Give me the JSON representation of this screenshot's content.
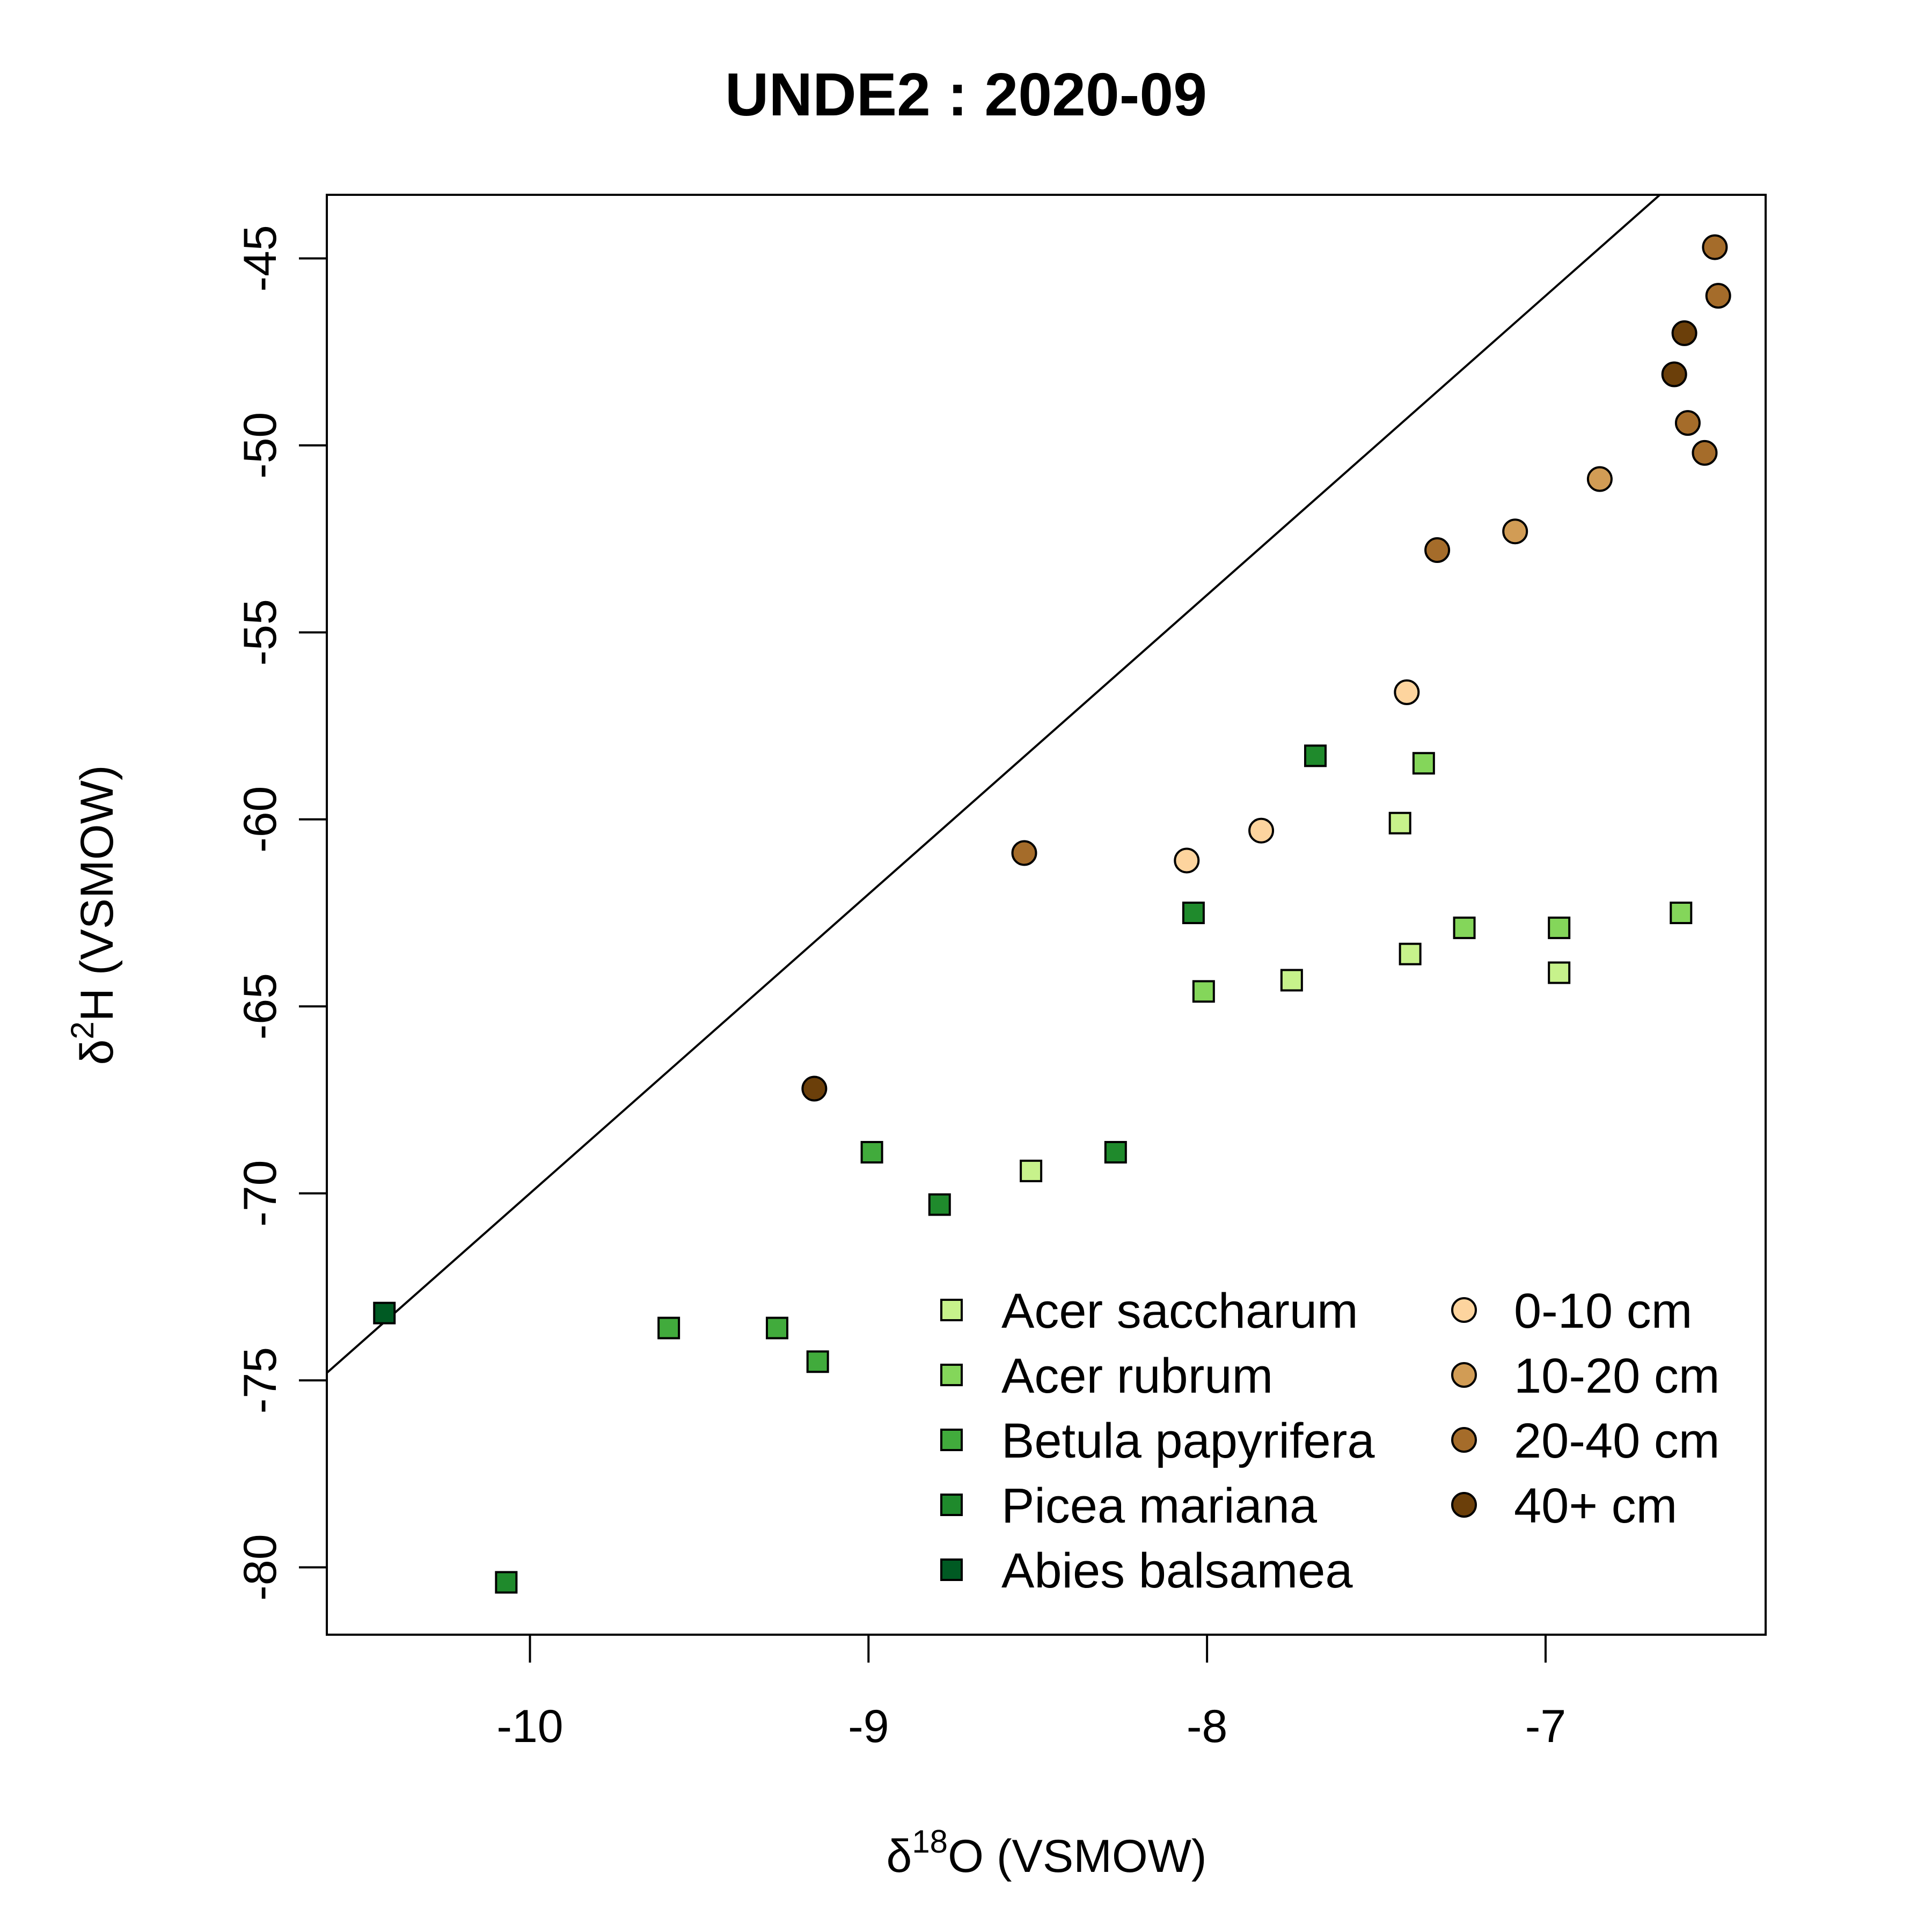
{
  "chart_data": {
    "type": "scatter",
    "title": "UNDE2 : 2020-09",
    "xlabel": {
      "symbol": "δ",
      "sup": "18",
      "main": "O (VSMOW)"
    },
    "ylabel": {
      "symbol": "δ",
      "sup": "2",
      "main": "H (VSMOW)"
    },
    "xlim": [
      -10.6,
      -6.35
    ],
    "ylim": [
      -81.8,
      -43.3
    ],
    "x_ticks": [
      -10,
      -9,
      -8,
      -7
    ],
    "x_tick_labels": [
      "-10",
      "-9",
      "-8",
      "-7"
    ],
    "y_ticks": [
      -80,
      -75,
      -70,
      -65,
      -60,
      -55,
      -50,
      -45
    ],
    "y_tick_labels": [
      "-80",
      "-75",
      "-70",
      "-65",
      "-60",
      "-55",
      "-50",
      "-45"
    ],
    "grid": false,
    "reference_line": {
      "slope": 8,
      "intercept": 10
    },
    "legend_position": "bottom-right",
    "series": [
      {
        "name": "Acer saccharum",
        "shape": "square",
        "color": "#c7f28b",
        "points": [
          [
            -8.52,
            -69.4
          ],
          [
            -7.75,
            -64.3
          ],
          [
            -7.43,
            -60.1
          ],
          [
            -7.4,
            -63.6
          ],
          [
            -6.96,
            -64.1
          ]
        ]
      },
      {
        "name": "Acer rubrum",
        "shape": "square",
        "color": "#84d65a",
        "points": [
          [
            -8.01,
            -64.6
          ],
          [
            -7.36,
            -58.5
          ],
          [
            -7.24,
            -62.9
          ],
          [
            -6.96,
            -62.9
          ],
          [
            -6.6,
            -62.5
          ]
        ]
      },
      {
        "name": "Betula papyrifera",
        "shape": "square",
        "color": "#41ab3c",
        "points": [
          [
            -9.59,
            -73.6
          ],
          [
            -9.27,
            -73.6
          ],
          [
            -9.15,
            -74.5
          ],
          [
            -8.99,
            -68.9
          ]
        ]
      },
      {
        "name": "Picea mariana",
        "shape": "square",
        "color": "#1f8a2c",
        "points": [
          [
            -10.07,
            -80.4
          ],
          [
            -8.79,
            -70.3
          ],
          [
            -8.27,
            -68.9
          ],
          [
            -8.04,
            -62.5
          ],
          [
            -7.68,
            -58.3
          ]
        ]
      },
      {
        "name": "Abies balsamea",
        "shape": "square",
        "color": "#005a23",
        "points": [
          [
            -10.43,
            -73.2
          ]
        ]
      },
      {
        "name": "0-10 cm",
        "shape": "circle",
        "color": "#fdd49e",
        "points": [
          [
            -8.06,
            -61.1
          ],
          [
            -7.84,
            -60.3
          ],
          [
            -7.41,
            -56.6
          ]
        ]
      },
      {
        "name": "10-20 cm",
        "shape": "circle",
        "color": "#d19c55",
        "points": [
          [
            -7.09,
            -52.3
          ],
          [
            -6.84,
            -50.9
          ]
        ]
      },
      {
        "name": "20-40 cm",
        "shape": "circle",
        "color": "#a56c2a",
        "points": [
          [
            -8.54,
            -60.9
          ],
          [
            -7.32,
            -52.8
          ],
          [
            -6.58,
            -49.4
          ],
          [
            -6.53,
            -50.2
          ],
          [
            -6.5,
            -44.7
          ],
          [
            -6.49,
            -46.0
          ]
        ]
      },
      {
        "name": "40+ cm",
        "shape": "circle",
        "color": "#6b3f0a",
        "points": [
          [
            -9.16,
            -67.2
          ],
          [
            -6.62,
            -48.1
          ],
          [
            -6.59,
            -47.0
          ]
        ]
      }
    ],
    "legend": {
      "left_column": [
        "Acer saccharum",
        "Acer rubrum",
        "Betula papyrifera",
        "Picea mariana",
        "Abies balsamea"
      ],
      "right_column": [
        "0-10 cm",
        "10-20 cm",
        "20-40 cm",
        "40+ cm"
      ]
    }
  }
}
